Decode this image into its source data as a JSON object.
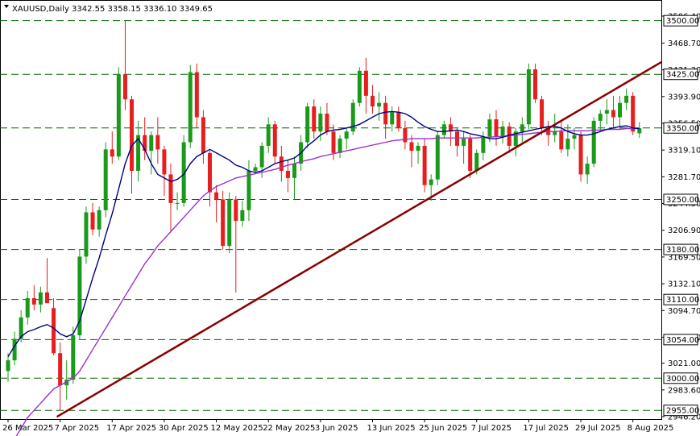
{
  "header": {
    "symbol": "XAUUSD,Daily",
    "ohlc": "3342.55 3358.15 3336.10 3349.65"
  },
  "chart_data": {
    "type": "candlestick",
    "title": "",
    "xlabel": "",
    "ylabel": "",
    "ylim": [
      2946.2,
      3506.4
    ],
    "grid": false,
    "colors": {
      "bull": "#1a9a1a",
      "bear": "#e61e1e",
      "ma_fast": "#000080",
      "ma_slow": "#9932cc",
      "trendline": "#8b0000",
      "level": "#006400",
      "tag_bg": "#ffffff",
      "tag_border": "#000000"
    },
    "y_ticks": [
      "3506.40",
      "3468.70",
      "3431.30",
      "3393.90",
      "3356.50",
      "3319.10",
      "3281.70",
      "3244.30",
      "3206.90",
      "3169.50",
      "3132.10",
      "3094.70",
      "3057.30",
      "3021.00",
      "2983.60",
      "2946.20"
    ],
    "x_ticks": [
      {
        "label": "26 Mar 2025",
        "index": 0
      },
      {
        "label": "7 Apr 2025",
        "index": 8
      },
      {
        "label": "17 Apr 2025",
        "index": 16
      },
      {
        "label": "30 Apr 2025",
        "index": 24
      },
      {
        "label": "12 May 2025",
        "index": 32
      },
      {
        "label": "22 May 2025",
        "index": 40
      },
      {
        "label": "3 Jun 2025",
        "index": 48
      },
      {
        "label": "13 Jun 2025",
        "index": 56
      },
      {
        "label": "25 Jun 2025",
        "index": 64
      },
      {
        "label": "7 Jul 2025",
        "index": 72
      },
      {
        "label": "17 Jul 2025",
        "index": 80
      },
      {
        "label": "29 Jul 2025",
        "index": 88
      },
      {
        "label": "8 Aug 2025",
        "index": 96
      }
    ],
    "levels": [
      {
        "value": 3500,
        "label": "3500.00"
      },
      {
        "value": 3425,
        "label": "3425.00"
      },
      {
        "value": 3350,
        "label": "3350.00"
      },
      {
        "value": 3250,
        "label": "3250.00"
      },
      {
        "value": 3180,
        "label": "3180.00"
      },
      {
        "value": 3110,
        "label": "3110.00"
      },
      {
        "value": 3054,
        "label": "3054.00"
      },
      {
        "value": 3000,
        "label": "3000.00"
      },
      {
        "value": 2955,
        "label": "2955.00"
      }
    ],
    "trendline": {
      "from": {
        "index": 7,
        "value": 2946
      },
      "to": {
        "index": 101,
        "value": 3441
      }
    },
    "candles": [
      [
        3010,
        3035,
        2995,
        3025
      ],
      [
        3025,
        3065,
        3018,
        3055
      ],
      [
        3055,
        3095,
        3050,
        3085
      ],
      [
        3085,
        3122,
        3075,
        3112
      ],
      [
        3112,
        3130,
        3095,
        3103
      ],
      [
        3103,
        3128,
        3092,
        3120
      ],
      [
        3120,
        3168,
        3108,
        3105
      ],
      [
        3098,
        3112,
        3032,
        3035
      ],
      [
        3035,
        3050,
        2955,
        2990
      ],
      [
        2990,
        3025,
        2970,
        2998
      ],
      [
        2998,
        3072,
        2992,
        3060
      ],
      [
        3060,
        3180,
        3055,
        3170
      ],
      [
        3170,
        3240,
        3160,
        3232
      ],
      [
        3232,
        3245,
        3200,
        3208
      ],
      [
        3208,
        3240,
        3198,
        3235
      ],
      [
        3235,
        3330,
        3225,
        3320
      ],
      [
        3320,
        3345,
        3300,
        3310
      ],
      [
        3310,
        3435,
        3305,
        3425
      ],
      [
        3425,
        3500,
        3375,
        3390
      ],
      [
        3390,
        3395,
        3258,
        3290
      ],
      [
        3290,
        3360,
        3275,
        3340
      ],
      [
        3340,
        3365,
        3305,
        3318
      ],
      [
        3318,
        3345,
        3285,
        3340
      ],
      [
        3340,
        3365,
        3300,
        3320
      ],
      [
        3320,
        3325,
        3255,
        3285
      ],
      [
        3285,
        3300,
        3205,
        3245
      ],
      [
        3245,
        3260,
        3235,
        3245
      ],
      [
        3245,
        3340,
        3240,
        3330
      ],
      [
        3330,
        3438,
        3322,
        3428
      ],
      [
        3428,
        3440,
        3350,
        3365
      ],
      [
        3365,
        3375,
        3300,
        3315
      ],
      [
        3315,
        3318,
        3240,
        3260
      ],
      [
        3260,
        3270,
        3218,
        3250
      ],
      [
        3250,
        3262,
        3180,
        3185
      ],
      [
        3185,
        3260,
        3175,
        3250
      ],
      [
        3250,
        3255,
        3120,
        3220
      ],
      [
        3220,
        3248,
        3212,
        3235
      ],
      [
        3235,
        3305,
        3220,
        3290
      ],
      [
        3290,
        3300,
        3285,
        3295
      ],
      [
        3295,
        3330,
        3280,
        3325
      ],
      [
        3325,
        3365,
        3315,
        3355
      ],
      [
        3355,
        3360,
        3300,
        3310
      ],
      [
        3310,
        3325,
        3275,
        3290
      ],
      [
        3290,
        3305,
        3260,
        3280
      ],
      [
        3280,
        3310,
        3250,
        3300
      ],
      [
        3300,
        3340,
        3290,
        3330
      ],
      [
        3330,
        3385,
        3322,
        3380
      ],
      [
        3380,
        3390,
        3335,
        3345
      ],
      [
        3345,
        3380,
        3332,
        3370
      ],
      [
        3370,
        3385,
        3340,
        3345
      ],
      [
        3345,
        3355,
        3305,
        3315
      ],
      [
        3315,
        3340,
        3308,
        3335
      ],
      [
        3335,
        3350,
        3320,
        3345
      ],
      [
        3345,
        3390,
        3340,
        3385
      ],
      [
        3385,
        3435,
        3380,
        3430
      ],
      [
        3430,
        3448,
        3370,
        3395
      ],
      [
        3395,
        3410,
        3370,
        3380
      ],
      [
        3380,
        3400,
        3360,
        3385
      ],
      [
        3385,
        3395,
        3335,
        3355
      ],
      [
        3355,
        3380,
        3345,
        3372
      ],
      [
        3372,
        3380,
        3345,
        3350
      ],
      [
        3350,
        3360,
        3320,
        3330
      ],
      [
        3330,
        3340,
        3295,
        3318
      ],
      [
        3318,
        3330,
        3300,
        3325
      ],
      [
        3325,
        3335,
        3260,
        3270
      ],
      [
        3270,
        3285,
        3248,
        3278
      ],
      [
        3278,
        3345,
        3270,
        3340
      ],
      [
        3340,
        3360,
        3335,
        3355
      ],
      [
        3355,
        3365,
        3325,
        3345
      ],
      [
        3345,
        3350,
        3310,
        3325
      ],
      [
        3325,
        3345,
        3300,
        3335
      ],
      [
        3335,
        3340,
        3280,
        3290
      ],
      [
        3290,
        3320,
        3285,
        3315
      ],
      [
        3315,
        3345,
        3305,
        3338
      ],
      [
        3338,
        3370,
        3330,
        3362
      ],
      [
        3362,
        3375,
        3325,
        3338
      ],
      [
        3338,
        3360,
        3328,
        3352
      ],
      [
        3352,
        3358,
        3315,
        3325
      ],
      [
        3325,
        3350,
        3310,
        3345
      ],
      [
        3345,
        3365,
        3330,
        3355
      ],
      [
        3355,
        3440,
        3348,
        3432
      ],
      [
        3432,
        3440,
        3385,
        3390
      ],
      [
        3390,
        3395,
        3340,
        3350
      ],
      [
        3350,
        3360,
        3325,
        3340
      ],
      [
        3340,
        3370,
        3330,
        3345
      ],
      [
        3345,
        3360,
        3315,
        3320
      ],
      [
        3320,
        3355,
        3310,
        3335
      ],
      [
        3335,
        3350,
        3320,
        3340
      ],
      [
        3340,
        3345,
        3275,
        3285
      ],
      [
        3285,
        3310,
        3272,
        3300
      ],
      [
        3300,
        3365,
        3295,
        3360
      ],
      [
        3360,
        3375,
        3345,
        3370
      ],
      [
        3370,
        3390,
        3355,
        3375
      ],
      [
        3375,
        3395,
        3350,
        3365
      ],
      [
        3365,
        3395,
        3348,
        3385
      ],
      [
        3385,
        3405,
        3375,
        3395
      ],
      [
        3395,
        3400,
        3340,
        3345
      ],
      [
        3342.55,
        3358.15,
        3336.1,
        3349.65
      ]
    ],
    "ma_fast": [
      3030,
      3045,
      3058,
      3065,
      3068,
      3072,
      3075,
      3070,
      3062,
      3058,
      3062,
      3080,
      3110,
      3140,
      3168,
      3200,
      3230,
      3265,
      3300,
      3325,
      3335,
      3320,
      3300,
      3285,
      3280,
      3275,
      3278,
      3285,
      3300,
      3310,
      3315,
      3320,
      3315,
      3310,
      3305,
      3298,
      3295,
      3290,
      3288,
      3290,
      3295,
      3300,
      3303,
      3305,
      3308,
      3315,
      3325,
      3332,
      3340,
      3345,
      3347,
      3348,
      3350,
      3352,
      3355,
      3360,
      3365,
      3370,
      3372,
      3373,
      3372,
      3370,
      3365,
      3358,
      3352,
      3348,
      3345,
      3345,
      3346,
      3347,
      3345,
      3342,
      3340,
      3338,
      3335,
      3335,
      3337,
      3340,
      3342,
      3344,
      3346,
      3348,
      3350,
      3352,
      3352,
      3350,
      3345,
      3342,
      3340,
      3340,
      3342,
      3345,
      3348,
      3350,
      3352,
      3353,
      3350,
      3349
    ],
    "ma_slow": [
      2900,
      2915,
      2930,
      2945,
      2955,
      2965,
      2975,
      2985,
      2990,
      2995,
      3000,
      3010,
      3025,
      3040,
      3055,
      3070,
      3085,
      3100,
      3115,
      3130,
      3145,
      3160,
      3172,
      3185,
      3195,
      3205,
      3215,
      3225,
      3235,
      3245,
      3255,
      3262,
      3268,
      3272,
      3276,
      3280,
      3282,
      3284,
      3286,
      3288,
      3290,
      3292,
      3295,
      3298,
      3300,
      3303,
      3305,
      3307,
      3310,
      3312,
      3314,
      3316,
      3318,
      3320,
      3322,
      3324,
      3326,
      3328,
      3330,
      3332,
      3333,
      3334,
      3335,
      3335,
      3335,
      3335,
      3336,
      3336,
      3336,
      3336,
      3336,
      3336,
      3336,
      3337,
      3337,
      3338,
      3338,
      3339,
      3340,
      3341,
      3342,
      3343,
      3344,
      3345,
      3345,
      3346,
      3346,
      3346,
      3346,
      3346,
      3347,
      3347,
      3348,
      3348,
      3348,
      3349,
      3349,
      3349
    ]
  }
}
